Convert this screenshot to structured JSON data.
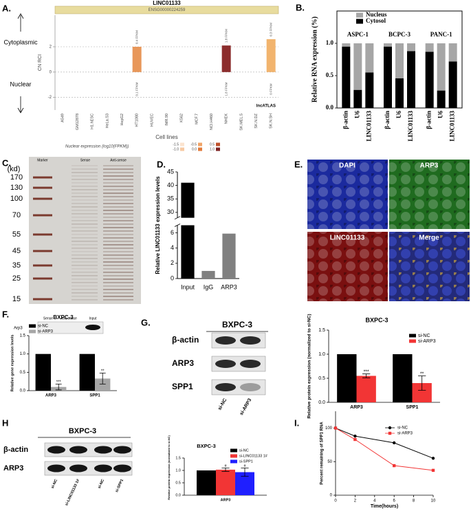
{
  "figure": {
    "panel_labels": [
      "A.",
      "B.",
      "C.",
      "D.",
      "E.",
      "F.",
      "G.",
      "H",
      "I."
    ],
    "a_side": {
      "top": "Cytoplasmic",
      "bottom": "Nuclear"
    },
    "c": {
      "unit": "(kd)",
      "lanes": [
        "Marker",
        "Sense",
        "Anti-sense"
      ],
      "markers": [
        "170",
        "130",
        "100",
        "70",
        "55",
        "45",
        "35",
        "25",
        "15"
      ],
      "blot_row": "Arp3",
      "blot_lanes": [
        "Sense",
        "Anti-sense",
        "Input"
      ]
    },
    "e": {
      "channels": [
        "DAPI",
        "ARP3",
        "LINC01133",
        "Merge"
      ]
    },
    "g_blot": {
      "title": "BXPC-3",
      "rows": [
        "β-actin",
        "ARP3",
        "SPP1"
      ],
      "lanes": [
        "si-NC",
        "si-ARP3"
      ]
    },
    "h_blot": {
      "title": "BXPC-3",
      "rows": [
        "β-actin",
        "ARP3"
      ],
      "lanes": [
        "si-NC",
        "si-LINC01133 1#",
        "si-NC",
        "si-SPP1"
      ]
    }
  },
  "chart_data": [
    {
      "type": "bar",
      "title": "LINC01133",
      "subtitle": "ENSG00000224259",
      "x_label": "Cell lines",
      "y_label": "CN RCI",
      "categories": [
        "A549",
        "GM12878",
        "H1.hESC",
        "HeLa.S3",
        "HepG2",
        "HT1080",
        "HUVEC",
        "IMR.90",
        "K562",
        "MCF.7",
        "NCI.H460",
        "NHEK",
        "SK.MEL.5",
        "SK.N.DZ",
        "SK.N.SH"
      ],
      "values": [
        null,
        null,
        null,
        null,
        null,
        2.0,
        null,
        null,
        null,
        null,
        null,
        2.1,
        null,
        null,
        2.6
      ],
      "colors": [
        null,
        null,
        null,
        null,
        null,
        "#e8975a",
        null,
        null,
        null,
        null,
        null,
        "#8c2d2d",
        null,
        null,
        "#f2b46e"
      ],
      "top_labels": [
        null,
        null,
        null,
        null,
        null,
        "0.4 FPKM",
        null,
        null,
        null,
        null,
        null,
        "1.8 FPKM",
        null,
        null,
        "0.3 FPKM"
      ],
      "bottom_labels": [
        null,
        null,
        null,
        null,
        null,
        "0.1 FPKM",
        null,
        null,
        null,
        null,
        null,
        "1.8 FPKM",
        null,
        null,
        "0 FPKM"
      ],
      "ylim": [
        -3,
        4.5
      ],
      "yticks": [
        -2,
        0,
        2
      ],
      "grid": true,
      "source": "lncATLAS",
      "legend_title": "Nuclear expression (log10(FPKM))",
      "legend": [
        {
          "name": "-1.5",
          "color": "#fbe3cf"
        },
        {
          "name": "-1.0",
          "color": "#f7c9a2"
        },
        {
          "name": "-0.5",
          "color": "#f0a468"
        },
        {
          "name": "0.0",
          "color": "#e27b3b"
        },
        {
          "name": "0.5",
          "color": "#bf512b"
        },
        {
          "name": "1.0",
          "color": "#7d2222"
        }
      ]
    },
    {
      "type": "stacked_bar",
      "y_label": "Relative RNA expression (%)",
      "groups": [
        "ASPC-1",
        "BCPC-3",
        "PANC-1"
      ],
      "categories": [
        "β-actin",
        "U6",
        "LINC01133",
        "β-actin",
        "U6",
        "LINC01133",
        "β-actin",
        "U6",
        "LINC01133"
      ],
      "series": [
        {
          "name": "Cytosol",
          "color": "#000000",
          "values": [
            0.95,
            0.28,
            0.55,
            0.95,
            0.46,
            0.88,
            0.87,
            0.27,
            0.72
          ]
        },
        {
          "name": "Nucleus",
          "color": "#a6a6a6",
          "values": [
            0.05,
            0.72,
            0.45,
            0.05,
            0.54,
            0.12,
            0.13,
            0.73,
            0.28
          ]
        }
      ],
      "ylim": [
        0,
        1.5
      ],
      "yticks": [
        {
          "value": 0,
          "label": "0.0"
        },
        0.5,
        {
          "value": 1,
          "label": "1.0"
        }
      ]
    },
    {
      "type": "broken_bar",
      "y_label": "Relative LINC01133 expression levels",
      "categories": [
        "Input",
        "IgG",
        "ARP3"
      ],
      "values": [
        41,
        1,
        5.9
      ],
      "colors": [
        "#000000",
        "#808080",
        "#808080"
      ],
      "ylim": [
        0,
        45
      ],
      "yticks": [
        0,
        2,
        4,
        6,
        30,
        35,
        40,
        45
      ],
      "axis_break": [
        7,
        28
      ]
    },
    {
      "type": "grouped_bar",
      "title": "BXPC-3",
      "y_label": "Relative gene expression levels",
      "categories": [
        "ARP3",
        "SPP1"
      ],
      "series": [
        {
          "name": "si-NC",
          "color": "#000000",
          "values": [
            1,
            1
          ]
        },
        {
          "name": "si-ARP3",
          "color": "#a6a6a6",
          "values": [
            0.1,
            0.33
          ],
          "errors": [
            0.08,
            0.15
          ],
          "annotations": [
            "***",
            "**"
          ]
        }
      ],
      "ylim": [
        0,
        1.5
      ],
      "yticks": [
        {
          "value": 0,
          "label": "0.0"
        },
        0.5,
        {
          "value": 1,
          "label": "1.0"
        },
        1.5
      ]
    },
    {
      "type": "grouped_bar",
      "title": "BXPC-3",
      "y_label": "Relative protein expression (normalized to si-NC)",
      "categories": [
        "ARP3",
        "SPP1"
      ],
      "series": [
        {
          "name": "si-NC",
          "color": "#000000",
          "values": [
            1,
            1
          ]
        },
        {
          "name": "si-ARP3",
          "color": "#f23535",
          "values": [
            0.55,
            0.4
          ],
          "errors": [
            0.04,
            0.15
          ],
          "annotations": [
            "***",
            "**"
          ]
        }
      ],
      "ylim": [
        0,
        1.5
      ],
      "yticks": [
        {
          "value": 0,
          "label": "0.0"
        },
        0.5,
        {
          "value": 1,
          "label": "1.0"
        },
        1.5
      ]
    },
    {
      "type": "grouped_bar",
      "title": "BXPC-3",
      "y_label": "Relative protein expression (normalized to si-NC)",
      "categories": [
        "ARP3"
      ],
      "series": [
        {
          "name": "si-NC",
          "color": "#000000",
          "values": [
            1
          ]
        },
        {
          "name": "si-LINC01133 1#",
          "color": "#f23535",
          "values": [
            1.03
          ],
          "errors": [
            0.07
          ],
          "annotations": [
            "#"
          ]
        },
        {
          "name": "si-SPP1",
          "color": "#1f1fff",
          "values": [
            0.93
          ],
          "errors": [
            0.17
          ],
          "annotations": [
            "#"
          ]
        }
      ],
      "ylim": [
        0,
        1.5
      ],
      "yticks": [
        {
          "value": 0,
          "label": "0.0"
        },
        0.5,
        {
          "value": 1,
          "label": "1.0"
        },
        1.5
      ]
    },
    {
      "type": "line",
      "x_label": "Time(hours)",
      "y_label": "Percent remaining of SPP1 RNA",
      "x": [
        0,
        2,
        6,
        10
      ],
      "series": [
        {
          "name": "si-NC",
          "color": "#000000",
          "marker": "circle",
          "values": [
            100,
            88,
            78,
            55
          ]
        },
        {
          "name": "si-ARP3",
          "color": "#f23535",
          "marker": "square",
          "values": [
            100,
            83,
            44,
            37
          ]
        }
      ],
      "xlim": [
        0,
        10
      ],
      "xticks": [
        0,
        2,
        4,
        6,
        8,
        10
      ],
      "ylim": [
        0,
        125
      ],
      "yticks": [
        0,
        50,
        100
      ]
    }
  ]
}
